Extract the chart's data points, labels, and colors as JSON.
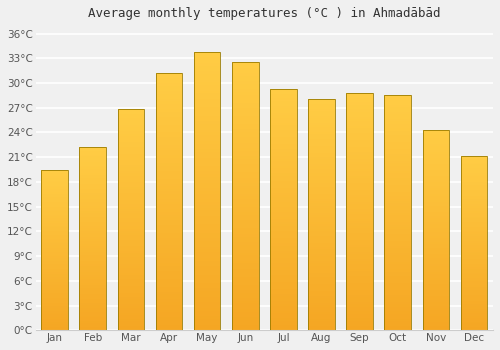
{
  "title": "Average monthly temperatures (°C ) in Ahmadābād",
  "months": [
    "Jan",
    "Feb",
    "Mar",
    "Apr",
    "May",
    "Jun",
    "Jul",
    "Aug",
    "Sep",
    "Oct",
    "Nov",
    "Dec"
  ],
  "values": [
    19.5,
    22.2,
    26.8,
    31.2,
    33.8,
    32.5,
    29.3,
    28.0,
    28.8,
    28.5,
    24.3,
    21.2
  ],
  "ylim": [
    0,
    37
  ],
  "yticks": [
    0,
    3,
    6,
    9,
    12,
    15,
    18,
    21,
    24,
    27,
    30,
    33,
    36
  ],
  "ytick_labels": [
    "0°C",
    "3°C",
    "6°C",
    "9°C",
    "12°C",
    "15°C",
    "18°C",
    "21°C",
    "24°C",
    "27°C",
    "30°C",
    "33°C",
    "36°C"
  ],
  "bg_color": "#f0f0f0",
  "grid_color": "#ffffff",
  "bar_color_top": "#FFCC44",
  "bar_color_bottom": "#F5A623",
  "bar_edge_color": "#B8860B",
  "title_fontsize": 9,
  "tick_fontsize": 7.5,
  "bar_width": 0.7
}
